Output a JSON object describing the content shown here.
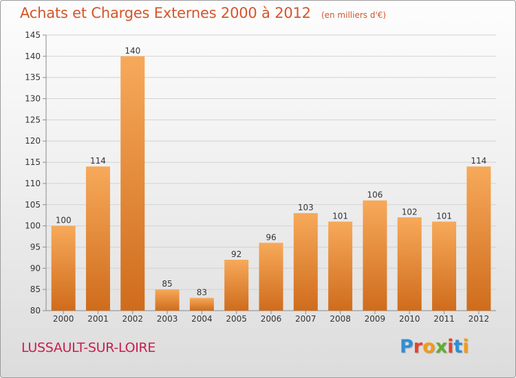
{
  "header": {
    "title": "Achats et Charges Externes 2000 à 2012",
    "unit": "(en milliers d'€)"
  },
  "footer": {
    "commune": "LUSSAULT-SUR-LOIRE",
    "brand": "Proxiti"
  },
  "colors": {
    "title": "#d4552a",
    "commune": "#c81e50",
    "bar_light": "#f7a95a",
    "bar_dark": "#cf6c1c",
    "brand_letters": [
      "#2e8fd6",
      "#e8412b",
      "#f19a1c",
      "#5fae2e",
      "#e8412b",
      "#2e8fd6",
      "#f19a1c"
    ]
  },
  "chart_data": {
    "type": "bar",
    "title": "Achats et Charges Externes 2000 à 2012",
    "subtitle": "(en milliers d'€)",
    "categories": [
      "2000",
      "2001",
      "2002",
      "2003",
      "2004",
      "2005",
      "2006",
      "2007",
      "2008",
      "2009",
      "2010",
      "2011",
      "2012"
    ],
    "values": [
      100,
      114,
      140,
      85,
      83,
      92,
      96,
      103,
      101,
      106,
      102,
      101,
      114
    ],
    "ylim": [
      80,
      145
    ],
    "yticks": [
      80,
      85,
      90,
      95,
      100,
      105,
      110,
      115,
      120,
      125,
      130,
      135,
      140,
      145
    ],
    "grid": true,
    "legend": "none"
  }
}
